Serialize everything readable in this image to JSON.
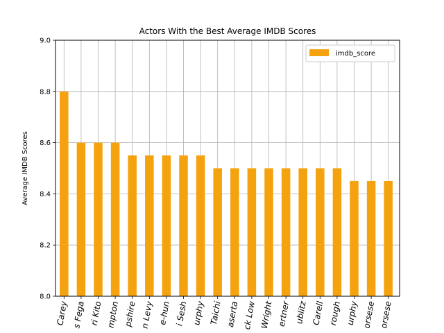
{
  "chart_data": {
    "type": "bar",
    "title": "Actors With the Best Average IMDB Scores",
    "xlabel": "",
    "ylabel": "Average IMDB Scores",
    "ylim": [
      8.0,
      9.0
    ],
    "yticks": [
      "8.0",
      "8.2",
      "8.4",
      "8.6",
      "8.8",
      "9.0"
    ],
    "grid": true,
    "legend_position": "top-right",
    "categories": [
      "Carey",
      "s Fega",
      "ri Kito",
      "mpton",
      "pshire",
      "n Levy",
      "e-hun",
      "i Sesh",
      "urphy",
      "Taichi",
      "aserta",
      "ck Low",
      "Wright",
      "ertner",
      "ublitz",
      "Carell",
      "rough",
      "urphy",
      "orsese",
      "orsese"
    ],
    "series": [
      {
        "name": "imdb_score",
        "color": "#f5a20f",
        "values": [
          8.8,
          8.6,
          8.6,
          8.6,
          8.55,
          8.55,
          8.55,
          8.55,
          8.55,
          8.5,
          8.5,
          8.5,
          8.5,
          8.5,
          8.5,
          8.5,
          8.5,
          8.45,
          8.45,
          8.45
        ]
      }
    ]
  }
}
